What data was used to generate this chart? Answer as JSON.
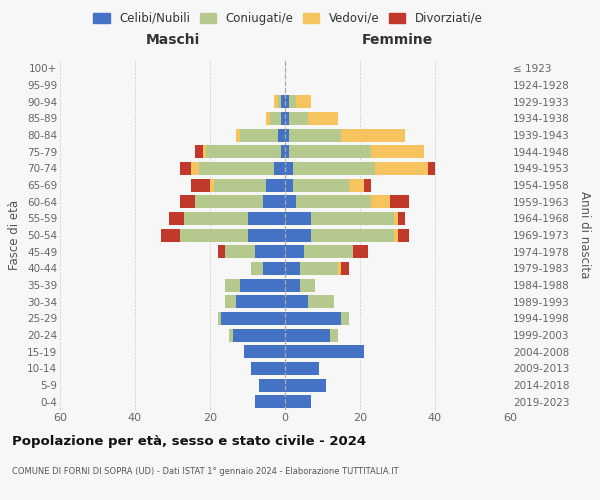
{
  "age_groups": [
    "0-4",
    "5-9",
    "10-14",
    "15-19",
    "20-24",
    "25-29",
    "30-34",
    "35-39",
    "40-44",
    "45-49",
    "50-54",
    "55-59",
    "60-64",
    "65-69",
    "70-74",
    "75-79",
    "80-84",
    "85-89",
    "90-94",
    "95-99",
    "100+"
  ],
  "birth_years": [
    "2019-2023",
    "2014-2018",
    "2009-2013",
    "2004-2008",
    "1999-2003",
    "1994-1998",
    "1989-1993",
    "1984-1988",
    "1979-1983",
    "1974-1978",
    "1969-1973",
    "1964-1968",
    "1959-1963",
    "1954-1958",
    "1949-1953",
    "1944-1948",
    "1939-1943",
    "1934-1938",
    "1929-1933",
    "1924-1928",
    "≤ 1923"
  ],
  "colors": {
    "celibe": "#4472c4",
    "coniugato": "#b5c98e",
    "vedovo": "#f5c45e",
    "divorziato": "#c0392b"
  },
  "maschi": {
    "celibe": [
      8,
      7,
      9,
      11,
      14,
      17,
      13,
      12,
      6,
      8,
      10,
      10,
      6,
      5,
      3,
      1,
      2,
      1,
      1,
      0,
      0
    ],
    "coniugato": [
      0,
      0,
      0,
      0,
      1,
      1,
      3,
      4,
      3,
      8,
      18,
      17,
      18,
      14,
      20,
      20,
      10,
      3,
      1,
      0,
      0
    ],
    "vedovo": [
      0,
      0,
      0,
      0,
      0,
      0,
      0,
      0,
      0,
      0,
      0,
      0,
      0,
      1,
      2,
      1,
      1,
      1,
      1,
      0,
      0
    ],
    "divorziato": [
      0,
      0,
      0,
      0,
      0,
      0,
      0,
      0,
      0,
      2,
      5,
      4,
      4,
      5,
      3,
      2,
      0,
      0,
      0,
      0,
      0
    ]
  },
  "femmine": {
    "nubile": [
      7,
      11,
      9,
      21,
      12,
      15,
      6,
      4,
      4,
      5,
      7,
      7,
      3,
      2,
      2,
      1,
      1,
      1,
      1,
      0,
      0
    ],
    "coniugata": [
      0,
      0,
      0,
      0,
      2,
      2,
      7,
      4,
      10,
      13,
      22,
      22,
      20,
      15,
      22,
      22,
      14,
      5,
      2,
      0,
      0
    ],
    "vedova": [
      0,
      0,
      0,
      0,
      0,
      0,
      0,
      0,
      1,
      0,
      1,
      1,
      5,
      4,
      14,
      14,
      17,
      8,
      4,
      0,
      0
    ],
    "divorziata": [
      0,
      0,
      0,
      0,
      0,
      0,
      0,
      0,
      2,
      4,
      3,
      2,
      5,
      2,
      2,
      0,
      0,
      0,
      0,
      0,
      0
    ]
  },
  "xlim": 60,
  "title": "Popolazione per età, sesso e stato civile - 2024",
  "subtitle": "COMUNE DI FORNI DI SOPRA (UD) - Dati ISTAT 1° gennaio 2024 - Elaborazione TUTTITALIA.IT",
  "ylabel_left": "Fasce di età",
  "ylabel_right": "Anni di nascita",
  "xlabel_left": "Maschi",
  "xlabel_right": "Femmine",
  "legend_labels": [
    "Celibi/Nubili",
    "Coniugati/e",
    "Vedovi/e",
    "Divorziati/e"
  ],
  "bg_color": "#f7f7f7"
}
